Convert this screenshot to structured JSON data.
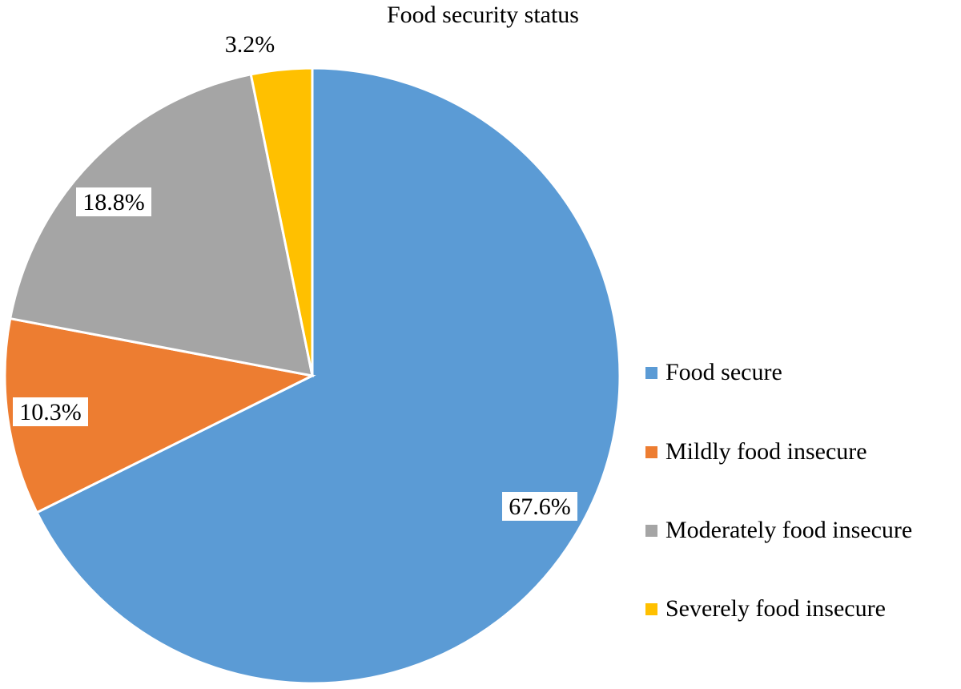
{
  "chart_data": {
    "type": "pie",
    "title": "Food security status",
    "start_angle": "12 o'clock",
    "direction": "clockwise",
    "legend_position": "right",
    "slices": [
      {
        "name": "Food secure",
        "value": 67.6,
        "label": "67.6%",
        "color": "#5B9BD5"
      },
      {
        "name": "Mildly food insecure",
        "value": 10.3,
        "label": "10.3%",
        "color": "#ED7D31"
      },
      {
        "name": "Moderately food insecure",
        "value": 18.8,
        "label": "18.8%",
        "color": "#A5A5A5"
      },
      {
        "name": "Severely food insecure",
        "value": 3.2,
        "label": "3.2%",
        "color": "#FFC000"
      }
    ]
  }
}
